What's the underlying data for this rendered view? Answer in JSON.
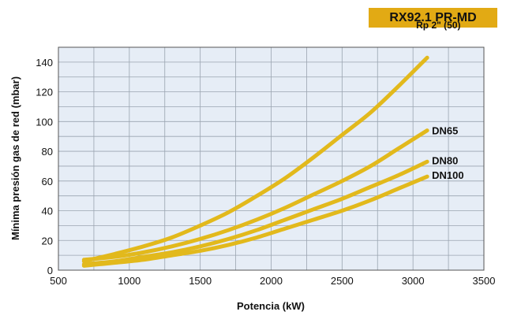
{
  "header": {
    "badge": "RX92.1 PR-MD",
    "badge_color": "#e2aa14"
  },
  "chart_data": {
    "type": "line",
    "title": "",
    "xlabel": "Potencia (kW)",
    "ylabel": "Mínima presión gas de red (mbar)",
    "xlim": [
      500,
      3500
    ],
    "ylim": [
      0,
      150
    ],
    "xticks": [
      500,
      1000,
      1500,
      2000,
      2500,
      3000,
      3500
    ],
    "yticks": [
      0,
      20,
      40,
      60,
      80,
      100,
      120,
      140
    ],
    "grid": true,
    "plot_background": "#e6edf6",
    "line_color": "#e2b91c",
    "series": [
      {
        "name": "Rp 2\" (50)",
        "x": [
          680,
          900,
          1100,
          1300,
          1500,
          1700,
          1900,
          2100,
          2300,
          2500,
          2700,
          2900,
          3100
        ],
        "y": [
          6,
          11,
          16,
          22,
          30,
          39,
          50,
          62,
          76,
          91,
          106,
          124,
          143
        ]
      },
      {
        "name": "DN65",
        "x": [
          680,
          900,
          1100,
          1300,
          1500,
          1700,
          1900,
          2100,
          2300,
          2500,
          2700,
          2900,
          3100
        ],
        "y": [
          7,
          9,
          12,
          16,
          21,
          27,
          34,
          42,
          51,
          60,
          70,
          82,
          94
        ]
      },
      {
        "name": "DN80",
        "x": [
          680,
          900,
          1100,
          1300,
          1500,
          1700,
          1900,
          2100,
          2300,
          2500,
          2700,
          2900,
          3100
        ],
        "y": [
          4,
          6,
          9,
          12,
          16,
          21,
          27,
          34,
          41,
          48,
          56,
          64,
          73
        ]
      },
      {
        "name": "DN100",
        "x": [
          680,
          900,
          1100,
          1300,
          1500,
          1700,
          1900,
          2100,
          2300,
          2500,
          2700,
          2900,
          3100
        ],
        "y": [
          3,
          5,
          7,
          10,
          13,
          17,
          22,
          28,
          34,
          40,
          47,
          55,
          63
        ]
      }
    ]
  }
}
